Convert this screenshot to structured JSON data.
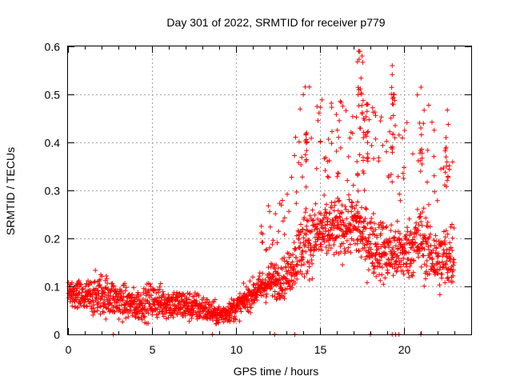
{
  "chart_data": {
    "type": "scatter",
    "title": "Day 301 of 2022, SRMTID for receiver p779",
    "xlabel": "GPS time / hours",
    "ylabel": "SRMTID / TECUs",
    "xlim": [
      0,
      24
    ],
    "ylim": [
      0,
      0.6
    ],
    "x_ticks": [
      0,
      5,
      10,
      15,
      20
    ],
    "x_tick_labels": [
      "0",
      "5",
      "10",
      "15",
      "20"
    ],
    "y_ticks": [
      0,
      0.1,
      0.2,
      0.3,
      0.4,
      0.5,
      0.6
    ],
    "y_tick_labels": [
      "0",
      "0.1",
      "0.2",
      "0.3",
      "0.4",
      "0.5",
      "0.6"
    ],
    "grid": true,
    "marker": "plus",
    "color": "#ff0000",
    "series": [
      {
        "name": "SRMTID",
        "profile": [
          {
            "x": 0.0,
            "y": 0.085,
            "spread": 0.035
          },
          {
            "x": 1.0,
            "y": 0.075,
            "spread": 0.045
          },
          {
            "x": 2.0,
            "y": 0.085,
            "spread": 0.055
          },
          {
            "x": 3.0,
            "y": 0.07,
            "spread": 0.045
          },
          {
            "x": 4.0,
            "y": 0.06,
            "spread": 0.04
          },
          {
            "x": 5.0,
            "y": 0.07,
            "spread": 0.045
          },
          {
            "x": 6.0,
            "y": 0.065,
            "spread": 0.04
          },
          {
            "x": 7.0,
            "y": 0.06,
            "spread": 0.04
          },
          {
            "x": 8.0,
            "y": 0.055,
            "spread": 0.035
          },
          {
            "x": 9.0,
            "y": 0.04,
            "spread": 0.025
          },
          {
            "x": 10.0,
            "y": 0.055,
            "spread": 0.03
          },
          {
            "x": 11.0,
            "y": 0.085,
            "spread": 0.035
          },
          {
            "x": 12.0,
            "y": 0.11,
            "spread": 0.045
          },
          {
            "x": 13.0,
            "y": 0.12,
            "spread": 0.05
          },
          {
            "x": 14.0,
            "y": 0.19,
            "spread": 0.09
          },
          {
            "x": 15.0,
            "y": 0.21,
            "spread": 0.08
          },
          {
            "x": 16.0,
            "y": 0.22,
            "spread": 0.07
          },
          {
            "x": 17.0,
            "y": 0.23,
            "spread": 0.09
          },
          {
            "x": 18.0,
            "y": 0.19,
            "spread": 0.08
          },
          {
            "x": 19.0,
            "y": 0.17,
            "spread": 0.08
          },
          {
            "x": 20.0,
            "y": 0.17,
            "spread": 0.07
          },
          {
            "x": 21.0,
            "y": 0.2,
            "spread": 0.09
          },
          {
            "x": 22.0,
            "y": 0.15,
            "spread": 0.08
          },
          {
            "x": 23.0,
            "y": 0.17,
            "spread": 0.09
          }
        ],
        "peaks": [
          {
            "x": 17.3,
            "y": 0.59
          },
          {
            "x": 17.5,
            "y": 0.58
          },
          {
            "x": 17.8,
            "y": 0.48
          },
          {
            "x": 19.3,
            "y": 0.56
          },
          {
            "x": 19.4,
            "y": 0.5
          },
          {
            "x": 14.2,
            "y": 0.42
          },
          {
            "x": 21.0,
            "y": 0.43
          },
          {
            "x": 22.5,
            "y": 0.41
          },
          {
            "x": 17.6,
            "y": 0.45
          },
          {
            "x": 17.2,
            "y": 0.36
          }
        ],
        "zero_values_at": [
          2.7,
          8.6,
          12.3,
          13.5,
          18.0,
          19.3,
          19.5,
          19.7,
          21.0
        ]
      }
    ]
  }
}
